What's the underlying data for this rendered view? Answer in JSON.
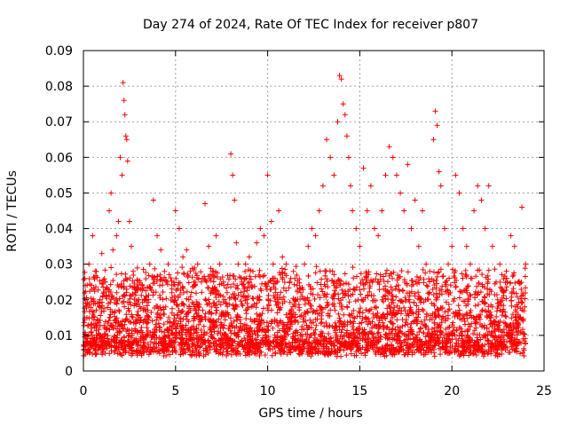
{
  "chart_data": {
    "type": "scatter",
    "title": "Day 274 of 2024, Rate Of TEC Index for receiver p807",
    "xlabel": "GPS time / hours",
    "ylabel": "ROTI / TECUs",
    "xlim": [
      0,
      25
    ],
    "ylim": [
      0,
      0.09
    ],
    "x_ticks": [
      "0",
      "5",
      "10",
      "15",
      "20",
      "25"
    ],
    "y_ticks": [
      "0",
      "0.01",
      "0.02",
      "0.03",
      "0.04",
      "0.05",
      "0.06",
      "0.07",
      "0.08",
      "0.09"
    ],
    "grid": true,
    "marker": "+",
    "color": "#ff0000",
    "density_note": "dense band of thousands of points between ~0.005 and ~0.025 across 0–24 h",
    "series": [
      {
        "x": [
          0.1,
          0.3,
          0.5,
          0.7,
          0.9,
          1.0,
          1.2,
          1.4,
          1.5,
          1.6,
          1.8,
          1.9,
          2.0,
          2.1,
          2.15,
          2.2,
          2.25,
          2.3,
          2.35,
          2.4,
          2.5,
          2.6,
          2.7,
          2.8,
          3.0,
          3.2,
          3.4,
          3.6,
          3.8,
          4.0,
          4.2,
          4.4,
          4.6,
          4.8,
          5.0,
          5.2,
          5.4,
          5.6,
          5.8,
          6.0,
          6.2,
          6.4,
          6.6,
          6.8,
          7.0,
          7.2,
          7.4,
          7.6,
          7.8,
          8.0,
          8.1,
          8.2,
          8.3,
          8.4,
          8.6,
          8.8,
          9.0,
          9.2,
          9.4,
          9.6,
          9.8,
          10.0,
          10.2,
          10.3,
          10.4,
          10.6,
          10.8,
          11.0,
          11.2,
          11.4,
          11.6,
          11.8,
          12.0,
          12.2,
          12.4,
          12.6,
          12.8,
          13.0,
          13.2,
          13.4,
          13.6,
          13.8,
          13.9,
          14.0,
          14.1,
          14.2,
          14.3,
          14.4,
          14.5,
          14.6,
          14.8,
          15.0,
          15.2,
          15.4,
          15.6,
          15.8,
          16.0,
          16.2,
          16.4,
          16.6,
          16.8,
          17.0,
          17.2,
          17.4,
          17.6,
          17.8,
          18.0,
          18.2,
          18.4,
          18.6,
          18.8,
          19.0,
          19.1,
          19.2,
          19.3,
          19.4,
          19.6,
          19.8,
          20.0,
          20.2,
          20.4,
          20.6,
          20.8,
          21.0,
          21.2,
          21.4,
          21.6,
          21.8,
          22.0,
          22.2,
          22.4,
          22.6,
          22.8,
          23.0,
          23.2,
          23.4,
          23.6,
          23.8,
          24.0
        ],
        "y": [
          0.024,
          0.03,
          0.038,
          0.028,
          0.02,
          0.033,
          0.025,
          0.045,
          0.05,
          0.034,
          0.038,
          0.042,
          0.06,
          0.055,
          0.081,
          0.076,
          0.072,
          0.066,
          0.065,
          0.059,
          0.042,
          0.035,
          0.028,
          0.022,
          0.02,
          0.024,
          0.021,
          0.03,
          0.048,
          0.038,
          0.034,
          0.028,
          0.03,
          0.022,
          0.045,
          0.04,
          0.032,
          0.034,
          0.028,
          0.025,
          0.03,
          0.025,
          0.047,
          0.035,
          0.028,
          0.038,
          0.03,
          0.025,
          0.022,
          0.061,
          0.055,
          0.048,
          0.036,
          0.03,
          0.025,
          0.03,
          0.032,
          0.028,
          0.036,
          0.04,
          0.038,
          0.055,
          0.042,
          0.03,
          0.026,
          0.045,
          0.032,
          0.03,
          0.025,
          0.028,
          0.024,
          0.022,
          0.03,
          0.035,
          0.04,
          0.038,
          0.045,
          0.052,
          0.065,
          0.06,
          0.055,
          0.07,
          0.083,
          0.082,
          0.075,
          0.072,
          0.066,
          0.06,
          0.052,
          0.045,
          0.04,
          0.035,
          0.057,
          0.045,
          0.052,
          0.04,
          0.038,
          0.045,
          0.055,
          0.063,
          0.06,
          0.055,
          0.05,
          0.045,
          0.058,
          0.04,
          0.048,
          0.035,
          0.045,
          0.03,
          0.028,
          0.065,
          0.073,
          0.069,
          0.056,
          0.052,
          0.04,
          0.03,
          0.035,
          0.055,
          0.05,
          0.04,
          0.035,
          0.03,
          0.045,
          0.052,
          0.048,
          0.04,
          0.052,
          0.035,
          0.025,
          0.03,
          0.022,
          0.025,
          0.038,
          0.035,
          0.025,
          0.046,
          0.03
        ]
      }
    ]
  }
}
